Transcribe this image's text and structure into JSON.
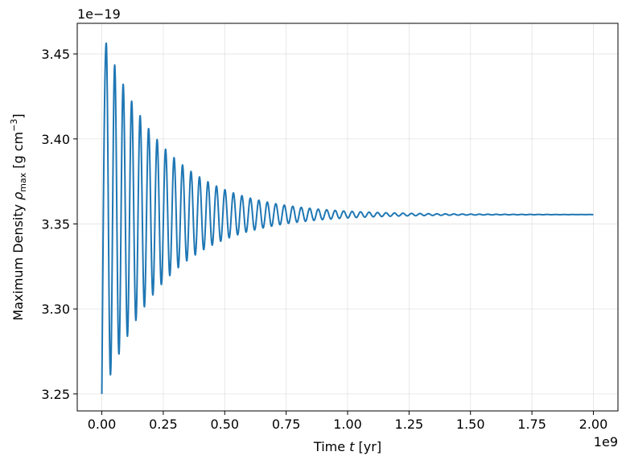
{
  "chart_data": {
    "type": "line",
    "title": "",
    "xlabel": "Time t [yr]",
    "ylabel": "Maximum Density ρmax [g cm−3]",
    "xlabel_parts": {
      "before": "Time ",
      "italic": "t",
      "after": " [yr]"
    },
    "ylabel_parts": {
      "before": "Maximum Density ",
      "symbol": "ρ",
      "subscript": "max",
      "after_open": " [g cm",
      "superscript": "−3",
      "after_close": "]"
    },
    "x_offset_text": "1e9",
    "y_offset_text": "1e−19",
    "x_scale": 1000000000.0,
    "y_scale": 1e-19,
    "xlim": [
      -100000000.0,
      2100000000.0
    ],
    "ylim": [
      3.24e-19,
      3.468e-19
    ],
    "xticks": [
      0,
      250000000.0,
      500000000.0,
      750000000.0,
      1000000000.0,
      1250000000.0,
      1500000000.0,
      1750000000.0,
      2000000000.0
    ],
    "xtick_labels": [
      "0.00",
      "0.25",
      "0.50",
      "0.75",
      "1.00",
      "1.25",
      "1.50",
      "1.75",
      "2.00"
    ],
    "yticks": [
      3.25e-19,
      3.3e-19,
      3.35e-19,
      3.4e-19,
      3.45e-19
    ],
    "ytick_labels": [
      "3.25",
      "3.30",
      "3.35",
      "3.40",
      "3.45"
    ],
    "grid": true,
    "legend": "none",
    "line_color": "#1f77b4",
    "series": [
      {
        "description_values_note": "equilibrium value and damped oscillation parameters read from plot",
        "x_start": 0,
        "x_end": 2000000000.0,
        "start_value": 3.25e-19,
        "equilibrium": 3.3555e-19,
        "first_peak_x": 18000000.0,
        "first_peak_value": 3.4565e-19,
        "period": 34500000.0,
        "decay_time": 250000000.0,
        "settled_by_x": 950000000.0
      }
    ]
  }
}
